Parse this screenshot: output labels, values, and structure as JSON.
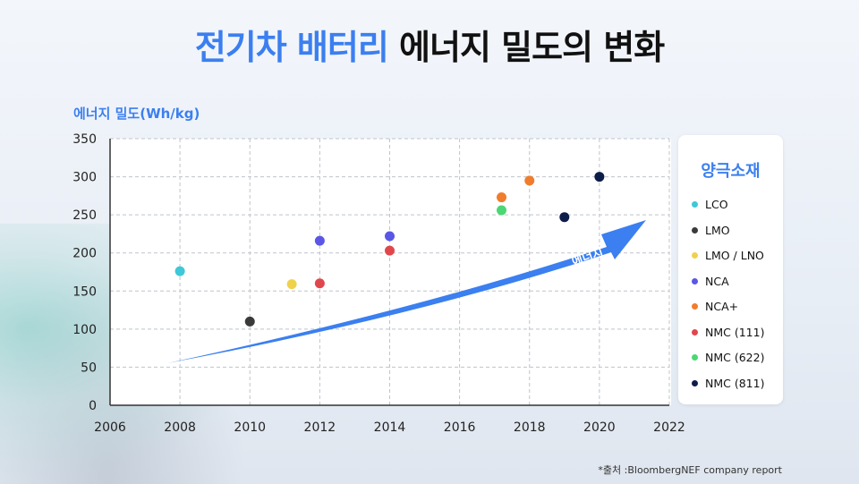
{
  "title_highlight": "전기차 배터리",
  "title_rest": "에너지 밀도의 변화",
  "source": "*출처 :BloombergNEF company report",
  "arrow_label": "에너지",
  "chart_data": {
    "type": "scatter",
    "ylabel": "에너지 밀도(Wh/kg)",
    "xlim": [
      2006,
      2022
    ],
    "ylim": [
      0,
      350
    ],
    "xticks": [
      "2006",
      "2008",
      "2010",
      "2012",
      "2014",
      "2016",
      "2018",
      "2020",
      "2022"
    ],
    "yticks": [
      "0",
      "50",
      "100",
      "150",
      "200",
      "250",
      "300",
      "350"
    ],
    "grid": true,
    "legend_title": "양극소재",
    "legend_position": "right",
    "series": [
      {
        "name": "LCO",
        "color": "#3ec8d8",
        "points": [
          [
            2008,
            176
          ]
        ]
      },
      {
        "name": "LMO",
        "color": "#3a3a3a",
        "points": [
          [
            2010,
            110
          ]
        ]
      },
      {
        "name": "LMO / LNO",
        "color": "#f0d24a",
        "points": [
          [
            2011.2,
            159
          ]
        ]
      },
      {
        "name": "NCA",
        "color": "#5a56e6",
        "points": [
          [
            2012,
            216
          ],
          [
            2014,
            222
          ]
        ]
      },
      {
        "name": "NCA+",
        "color": "#f07d2e",
        "points": [
          [
            2017.2,
            273
          ],
          [
            2018,
            295
          ]
        ]
      },
      {
        "name": "NMC (111)",
        "color": "#e0474c",
        "points": [
          [
            2012,
            160
          ],
          [
            2014,
            203
          ]
        ]
      },
      {
        "name": "NMC (622)",
        "color": "#4ad774",
        "points": [
          [
            2017.2,
            256
          ]
        ]
      },
      {
        "name": "NMC (811)",
        "color": "#0d1d4a",
        "points": [
          [
            2019,
            247
          ],
          [
            2020,
            300
          ]
        ]
      }
    ]
  }
}
